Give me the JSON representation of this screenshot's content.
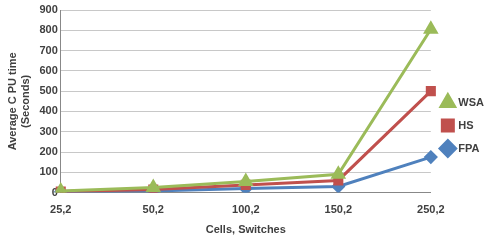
{
  "chart_data": {
    "type": "line",
    "x_label": "Cells, Switches",
    "y_label": [
      "Average C PU time",
      "(Seconds)"
    ],
    "categories": [
      "25,2",
      "50,2",
      "100,2",
      "150,2",
      "250,2"
    ],
    "series": [
      {
        "name": "WSA",
        "color": "#9bbb59",
        "marker": "triangle",
        "values": [
          8,
          25,
          55,
          90,
          805
        ]
      },
      {
        "name": "HS",
        "color": "#c0504d",
        "marker": "square",
        "values": [
          5,
          15,
          38,
          60,
          500
        ]
      },
      {
        "name": "FPA",
        "color": "#4f81bd",
        "marker": "diamond",
        "values": [
          3,
          8,
          20,
          30,
          175
        ]
      }
    ],
    "ylim": [
      0,
      900
    ],
    "yticks": [
      0,
      100,
      200,
      300,
      400,
      500,
      600,
      700,
      800,
      900
    ],
    "grid": true,
    "legend": "right"
  }
}
